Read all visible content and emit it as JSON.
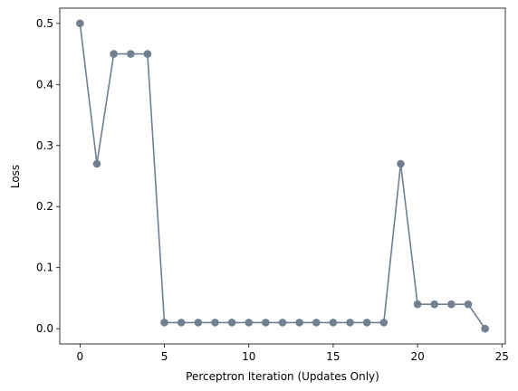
{
  "chart_data": {
    "type": "line",
    "title": "",
    "xlabel": "Perceptron Iteration (Updates Only)",
    "ylabel": "Loss",
    "xlim": [
      -1.2,
      25.2
    ],
    "ylim": [
      -0.025,
      0.525
    ],
    "x_ticks": [
      0,
      5,
      10,
      15,
      20,
      25
    ],
    "y_ticks": [
      0.0,
      0.1,
      0.2,
      0.3,
      0.4,
      0.5
    ],
    "x_tick_labels": [
      "0",
      "5",
      "10",
      "15",
      "20",
      "25"
    ],
    "y_tick_labels": [
      "0.0",
      "0.1",
      "0.2",
      "0.3",
      "0.4",
      "0.5"
    ],
    "grid": false,
    "series": [
      {
        "color": "#708090",
        "marker": "circle",
        "x": [
          0,
          1,
          2,
          3,
          4,
          5,
          6,
          7,
          8,
          9,
          10,
          11,
          12,
          13,
          14,
          15,
          16,
          17,
          18,
          19,
          20,
          21,
          22,
          23,
          24
        ],
        "y": [
          0.5,
          0.27,
          0.45,
          0.45,
          0.45,
          0.01,
          0.01,
          0.01,
          0.01,
          0.01,
          0.01,
          0.01,
          0.01,
          0.01,
          0.01,
          0.01,
          0.01,
          0.01,
          0.01,
          0.27,
          0.04,
          0.04,
          0.04,
          0.04,
          0.0
        ]
      }
    ]
  }
}
